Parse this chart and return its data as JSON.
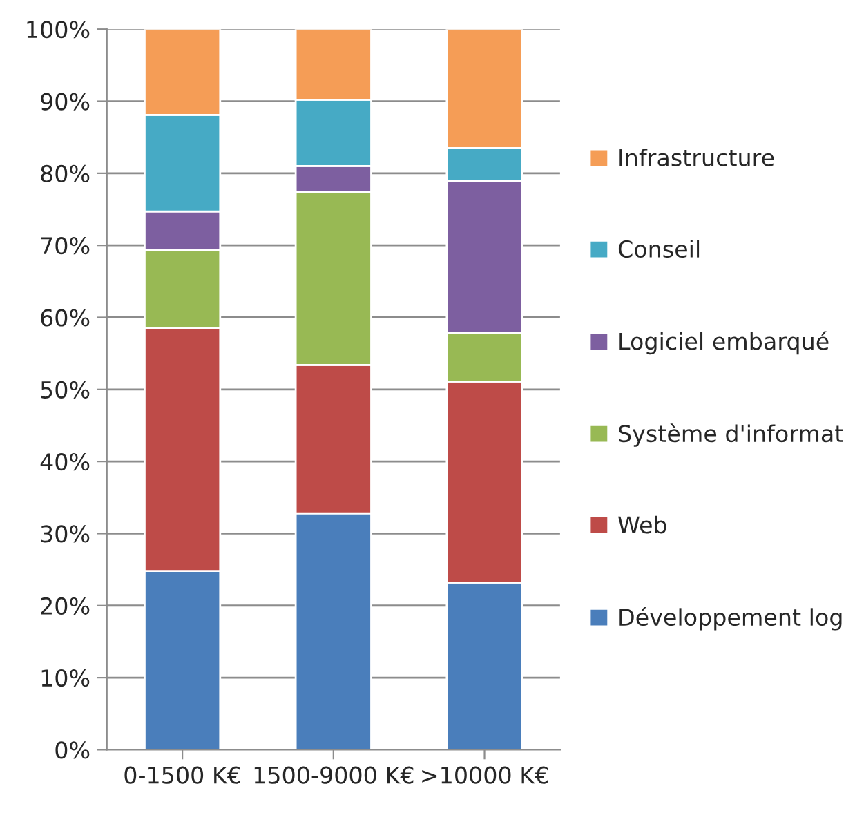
{
  "chart_data": {
    "type": "bar",
    "stacked": true,
    "categories": [
      "0-1500 K€",
      "1500-9000 K€",
      ">10000 K€"
    ],
    "series": [
      {
        "name": "Développement log",
        "color": "#4a7ebb",
        "values": [
          24.8,
          32.8,
          23.2
        ]
      },
      {
        "name": "Web",
        "color": "#be4b48",
        "values": [
          33.7,
          20.6,
          27.9
        ]
      },
      {
        "name": "Système d'informat",
        "color": "#98b954",
        "values": [
          10.8,
          24.0,
          6.7
        ]
      },
      {
        "name": "Logiciel embarqué",
        "color": "#7d5fa0",
        "values": [
          5.4,
          3.6,
          21.1
        ]
      },
      {
        "name": "Conseil",
        "color": "#46aac5",
        "values": [
          13.4,
          9.2,
          4.6
        ]
      },
      {
        "name": "Infrastructure",
        "color": "#f59d56",
        "values": [
          11.9,
          9.8,
          16.5
        ]
      }
    ],
    "ylim": [
      0,
      100
    ],
    "yticks": [
      {
        "value": 0,
        "label": "0%"
      },
      {
        "value": 10,
        "label": "10%"
      },
      {
        "value": 20,
        "label": "20%"
      },
      {
        "value": 30,
        "label": "30%"
      },
      {
        "value": 40,
        "label": "40%"
      },
      {
        "value": 50,
        "label": "50%"
      },
      {
        "value": 60,
        "label": "60%"
      },
      {
        "value": 70,
        "label": "70%"
      },
      {
        "value": 80,
        "label": "80%"
      },
      {
        "value": 90,
        "label": "90%"
      },
      {
        "value": 100,
        "label": "100%"
      }
    ],
    "grid": "y",
    "legend": "right"
  }
}
